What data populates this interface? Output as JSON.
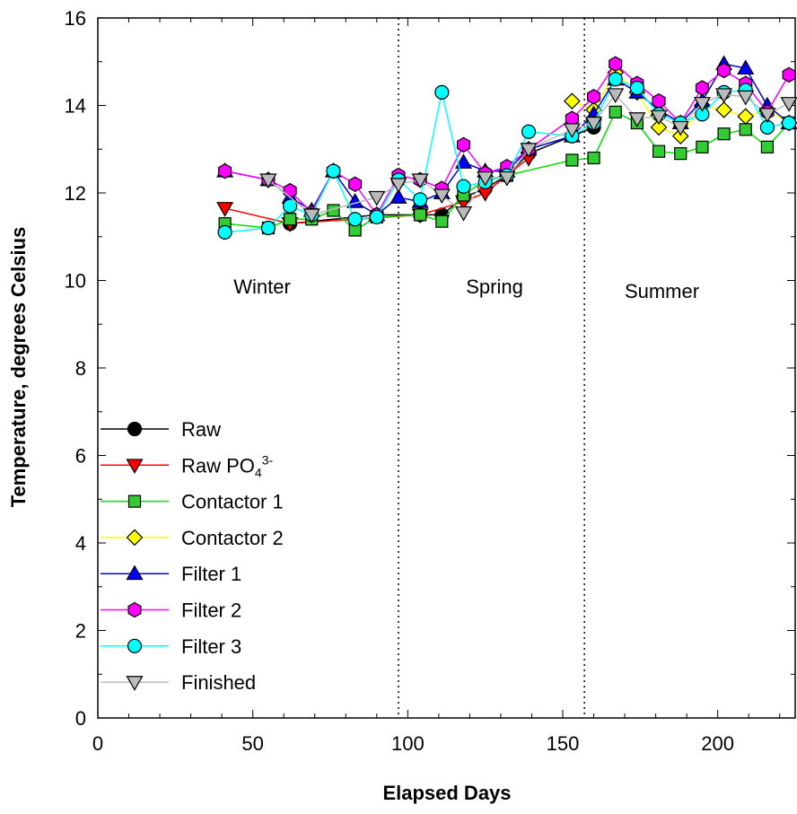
{
  "chart_data": {
    "type": "line",
    "xlabel": "Elapsed Days",
    "ylabel": "Temperature, degrees Celsius",
    "xlim": [
      0,
      225
    ],
    "ylim": [
      0,
      16
    ],
    "x_ticks": [
      0,
      50,
      100,
      150,
      200
    ],
    "y_ticks": [
      0,
      2,
      4,
      6,
      8,
      10,
      12,
      14,
      16
    ],
    "grid": false,
    "legend_position": "lower-left",
    "season_dividers": [
      97,
      157
    ],
    "season_labels": [
      {
        "text": "Winter",
        "x": 53,
        "y": 9.7
      },
      {
        "text": "Spring",
        "x": 128,
        "y": 9.7
      },
      {
        "text": "Summer",
        "x": 182,
        "y": 9.6
      }
    ],
    "series": [
      {
        "name": "Raw",
        "color": "#000000",
        "marker": "circle",
        "x": [
          62,
          90,
          104,
          111,
          118,
          125,
          132,
          139,
          153,
          160
        ],
        "y": [
          11.3,
          11.5,
          11.5,
          11.5,
          11.9,
          12.1,
          12.4,
          12.9,
          13.3,
          13.5
        ]
      },
      {
        "name": "Raw PO4 3-",
        "label_main": "Raw PO",
        "label_sub": "4",
        "label_sup": "3-",
        "color": "#ff0000",
        "marker": "triangle-down",
        "x": [
          41,
          62,
          104,
          118,
          125,
          132,
          139
        ],
        "y": [
          11.65,
          11.3,
          11.5,
          11.8,
          12.0,
          12.4,
          12.8
        ]
      },
      {
        "name": "Contactor 1",
        "color": "#00dd00",
        "fill": "#33cc33",
        "marker": "square",
        "x": [
          41,
          55,
          62,
          69,
          76,
          83,
          90,
          104,
          111,
          118,
          125,
          132,
          153,
          160,
          167,
          174,
          181,
          188,
          195,
          202,
          209,
          216,
          223
        ],
        "y": [
          11.3,
          11.2,
          11.4,
          11.4,
          11.6,
          11.15,
          11.45,
          11.5,
          11.35,
          11.95,
          12.3,
          12.4,
          12.75,
          12.8,
          13.85,
          13.6,
          12.95,
          12.9,
          13.05,
          13.35,
          13.45,
          13.05,
          13.6
        ]
      },
      {
        "name": "Contactor 2",
        "color": "#ffff00",
        "fill": "#ffff00",
        "marker": "diamond",
        "x": [
          153,
          160,
          167,
          174,
          181,
          188,
          195,
          202,
          209,
          216,
          223
        ],
        "y": [
          14.1,
          13.9,
          14.75,
          14.3,
          13.5,
          13.3,
          14.0,
          13.9,
          13.75,
          13.9,
          13.6
        ]
      },
      {
        "name": "Filter 1",
        "color": "#0000cc",
        "fill": "#0000ff",
        "marker": "triangle-up",
        "x": [
          41,
          55,
          62,
          69,
          76,
          83,
          90,
          97,
          104,
          111,
          118,
          125,
          132,
          139,
          153,
          160,
          167,
          174,
          181,
          188,
          195,
          202,
          209,
          216,
          223
        ],
        "y": [
          12.5,
          12.3,
          11.9,
          11.6,
          12.5,
          11.8,
          11.5,
          11.9,
          11.8,
          12.0,
          12.7,
          12.5,
          12.5,
          13.0,
          13.3,
          13.8,
          14.6,
          14.3,
          13.9,
          13.6,
          14.1,
          14.95,
          14.85,
          14.0,
          13.6
        ]
      },
      {
        "name": "Filter 2",
        "color": "#ff00ff",
        "fill": "#ff00ff",
        "marker": "hexagon",
        "x": [
          41,
          55,
          62,
          69,
          76,
          83,
          90,
          97,
          104,
          111,
          118,
          125,
          132,
          139,
          153,
          160,
          167,
          174,
          181,
          188,
          195,
          202,
          209,
          216,
          223
        ],
        "y": [
          12.5,
          12.3,
          12.05,
          11.55,
          12.5,
          12.2,
          11.5,
          12.4,
          12.3,
          12.1,
          13.1,
          12.45,
          12.6,
          13.0,
          13.7,
          14.2,
          14.95,
          14.5,
          14.1,
          13.6,
          14.4,
          14.8,
          14.5,
          13.85,
          14.7
        ]
      },
      {
        "name": "Filter 3",
        "color": "#00ffff",
        "fill": "#00ffff",
        "marker": "circle",
        "x": [
          41,
          55,
          62,
          69,
          76,
          83,
          90,
          97,
          104,
          111,
          118,
          125,
          132,
          139,
          153,
          160,
          167,
          174,
          181,
          188,
          195,
          202,
          209,
          216,
          223
        ],
        "y": [
          11.1,
          11.2,
          11.7,
          11.5,
          12.5,
          11.4,
          11.45,
          12.3,
          11.85,
          14.3,
          12.15,
          12.25,
          12.4,
          13.4,
          13.3,
          13.6,
          14.6,
          14.4,
          13.8,
          13.6,
          13.8,
          14.3,
          14.35,
          13.5,
          13.6
        ]
      },
      {
        "name": "Finished",
        "color": "#bbbbbb",
        "fill": "#bbbbbb",
        "marker": "triangle-down",
        "x": [
          55,
          69,
          90,
          97,
          104,
          111,
          118,
          125,
          132,
          139,
          153,
          160,
          167,
          174,
          181,
          188,
          195,
          202,
          209,
          216,
          223
        ],
        "y": [
          12.3,
          11.5,
          11.9,
          12.2,
          12.3,
          11.95,
          11.55,
          12.35,
          12.35,
          13.0,
          13.45,
          13.6,
          14.25,
          13.7,
          13.75,
          13.5,
          14.05,
          14.25,
          14.2,
          13.8,
          14.05
        ]
      }
    ]
  }
}
